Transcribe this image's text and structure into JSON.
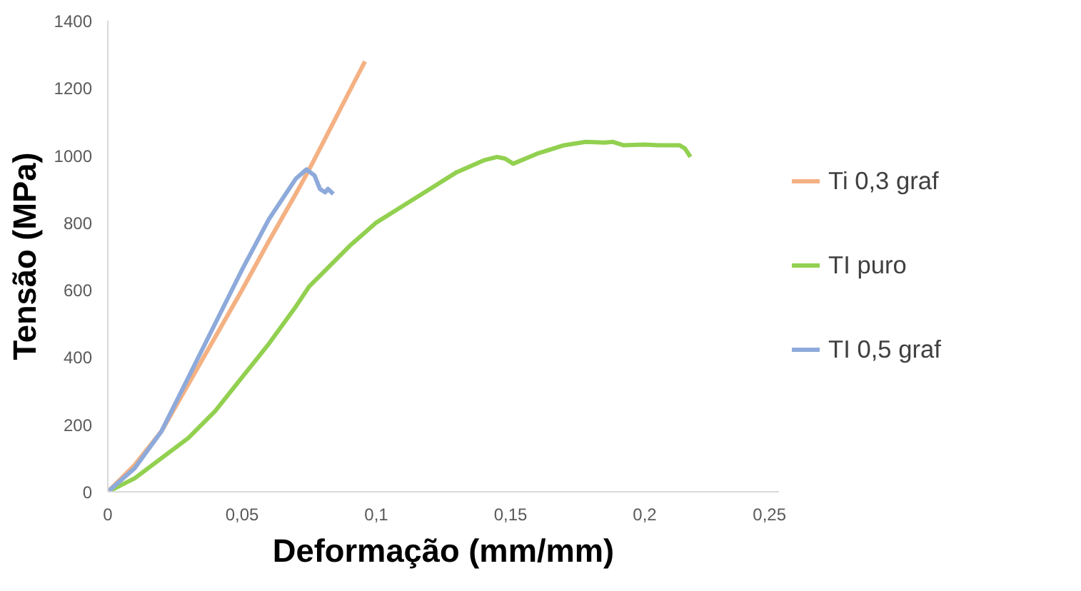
{
  "chart_data": {
    "type": "line",
    "xlabel": "Deformação (mm/mm)",
    "ylabel": "Tensão (MPa)",
    "xlim": [
      0,
      0.25
    ],
    "ylim": [
      0,
      1400
    ],
    "xticks": [
      0,
      {
        "value": 0.05,
        "label": "0,05"
      },
      {
        "value": 0.1,
        "label": "0,1"
      },
      {
        "value": 0.15,
        "label": "0,15"
      },
      {
        "value": 0.2,
        "label": "0,2"
      },
      {
        "value": 0.25,
        "label": "0,25"
      }
    ],
    "yticks": [
      0,
      200,
      400,
      600,
      800,
      1000,
      1200,
      1400
    ],
    "grid": false,
    "legend": "right",
    "marker": "none",
    "line_style": "solid",
    "series": [
      {
        "name": "Ti 0,3 graf",
        "color": "#f4b183",
        "x": [
          0,
          0.01,
          0.02,
          0.03,
          0.04,
          0.05,
          0.06,
          0.07,
          0.075,
          0.08,
          0.09,
          0.0958
        ],
        "values": [
          0,
          80,
          180,
          320,
          460,
          600,
          745,
          885,
          958,
          1035,
          1190,
          1279
        ]
      },
      {
        "name": "TI puro",
        "color": "#92d050",
        "x": [
          0,
          0.01,
          0.02,
          0.03,
          0.04,
          0.05,
          0.06,
          0.07,
          0.075,
          0.08,
          0.09,
          0.1,
          0.11,
          0.12,
          0.13,
          0.14,
          0.145,
          0.148,
          0.151,
          0.16,
          0.17,
          0.178,
          0.185,
          0.188,
          0.192,
          0.2,
          0.205,
          0.213,
          0.215,
          0.217
        ],
        "values": [
          0,
          40,
          100,
          160,
          240,
          340,
          440,
          550,
          610,
          650,
          730,
          800,
          850,
          900,
          950,
          985,
          995,
          990,
          975,
          1005,
          1030,
          1040,
          1038,
          1040,
          1030,
          1032,
          1030,
          1030,
          1020,
          995
        ]
      },
      {
        "name": "TI 0,5 graf",
        "color": "#8eaadb",
        "x": [
          0,
          0.01,
          0.02,
          0.03,
          0.04,
          0.05,
          0.06,
          0.07,
          0.074,
          0.077,
          0.079,
          0.081,
          0.082,
          0.084
        ],
        "values": [
          0,
          70,
          180,
          340,
          500,
          660,
          810,
          930,
          958,
          940,
          900,
          890,
          900,
          885
        ]
      }
    ]
  }
}
